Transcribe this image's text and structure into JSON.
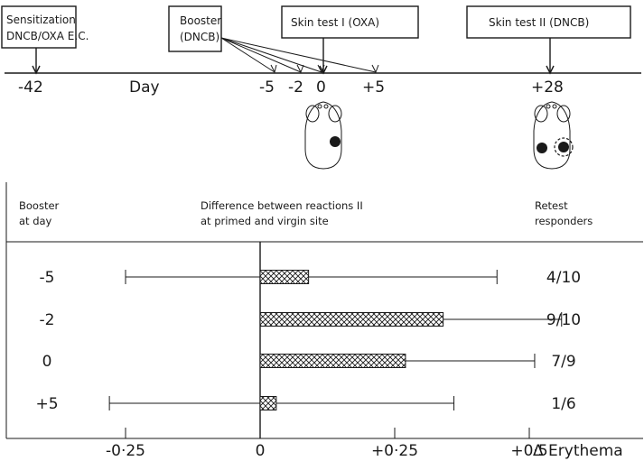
{
  "timeline": {
    "boxes": {
      "sensitization_line1": "Sensitization",
      "sensitization_line2": "DNCB/OXA E.C.",
      "booster_line1": "Booster",
      "booster_line2": "(DNCB)",
      "skin_test_1": "Skin test I (OXA)",
      "skin_test_2": "Skin test II (DNCB)"
    },
    "day_label": "Day",
    "days": [
      "-42",
      "-5",
      "-2",
      "0",
      "+5",
      "+28"
    ]
  },
  "table": {
    "col1_line1": "Booster",
    "col1_line2": "at day",
    "col2_line1": "Difference between reactions II",
    "col2_line2": "at primed and virgin site",
    "col3_line1": "Retest",
    "col3_line2": "responders"
  },
  "chart_data": {
    "type": "bar",
    "orientation": "horizontal",
    "categories": [
      "-5",
      "-2",
      "0",
      "+5"
    ],
    "values": [
      0.09,
      0.34,
      0.27,
      0.03
    ],
    "error_low": [
      -0.25,
      0.0,
      0.0,
      -0.28
    ],
    "error_high": [
      0.44,
      0.56,
      0.51,
      0.36
    ],
    "responders": [
      "4/10",
      "9/10",
      "7/9",
      "1/6"
    ],
    "x_ticks": [
      "-0·25",
      "0",
      "+0·25",
      "+0·5"
    ],
    "x_tick_values": [
      -0.25,
      0,
      0.25,
      0.5
    ],
    "xlabel": "Δ Erythema",
    "xlim": [
      -0.33,
      0.57
    ],
    "bar_fill": "crosshatch",
    "color": "#1a1a1a"
  }
}
